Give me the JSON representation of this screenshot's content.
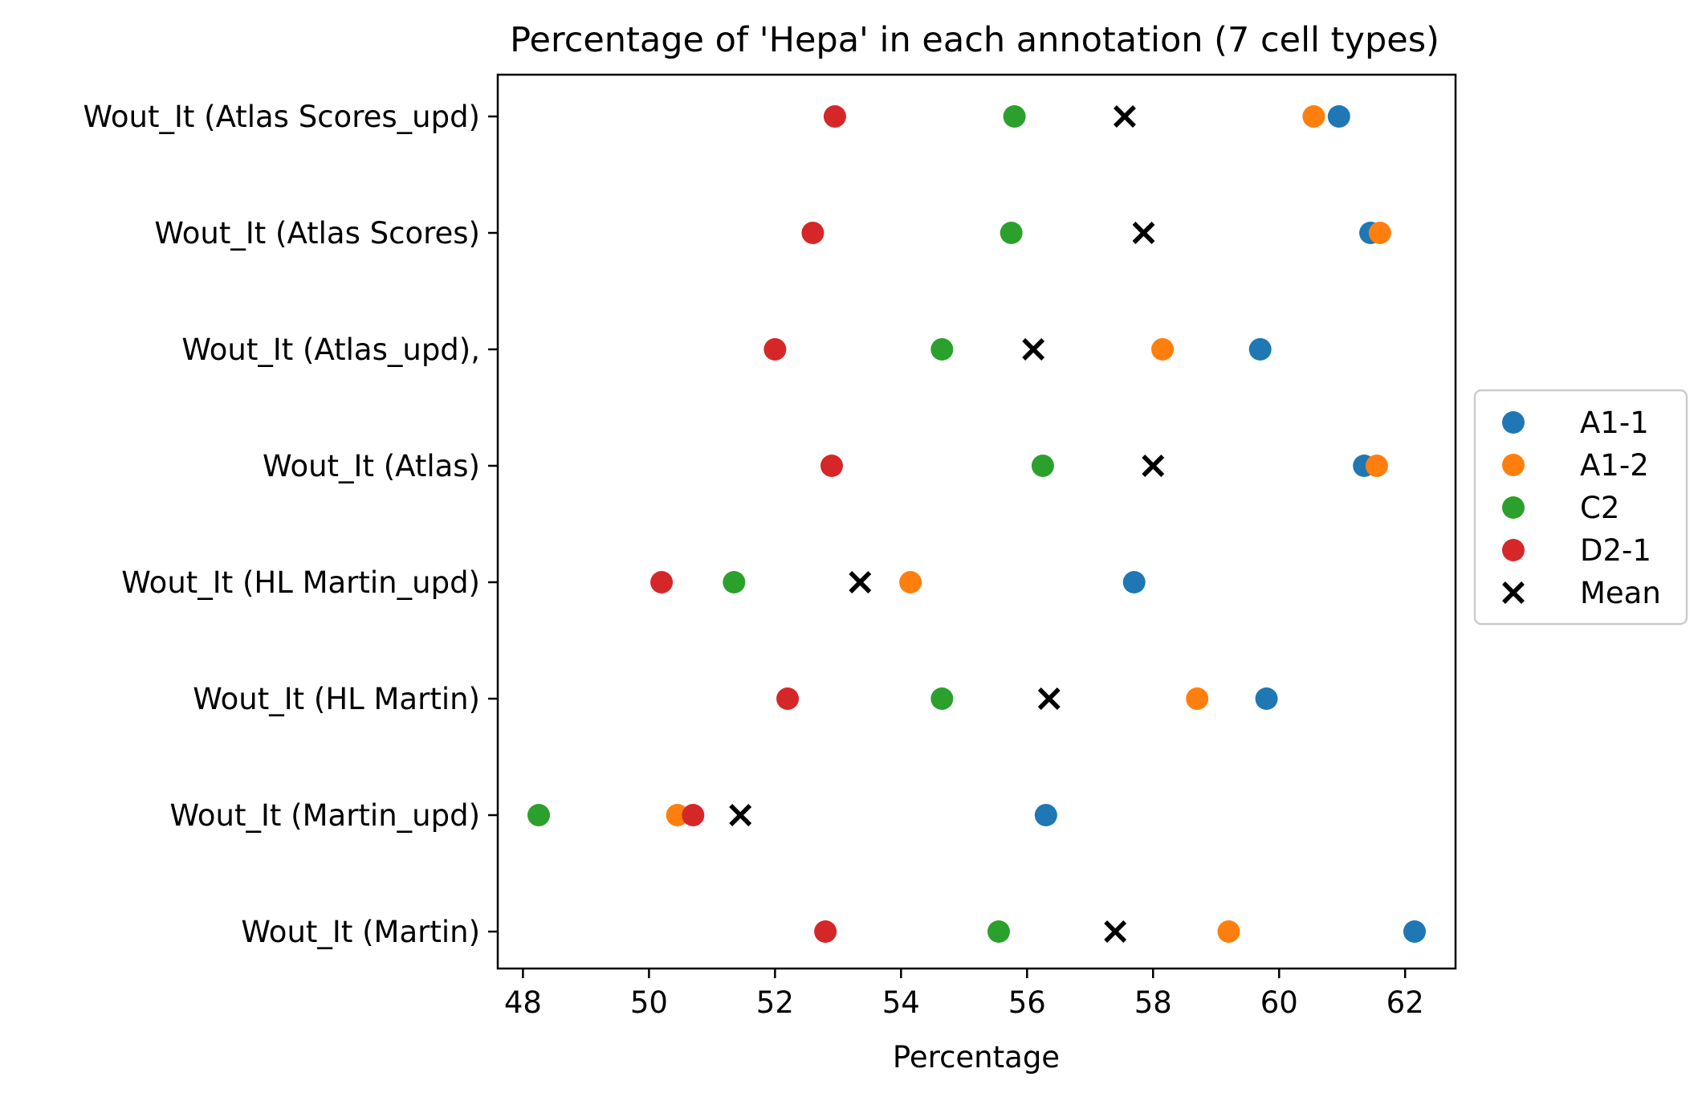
{
  "chart_data": {
    "type": "scatter",
    "title": "Percentage of 'Hepa' in each annotation (7 cell types)",
    "xlabel": "Percentage",
    "ylabel": "",
    "xlim": [
      47.6,
      62.8
    ],
    "xticks": [
      48,
      50,
      52,
      54,
      56,
      58,
      60,
      62
    ],
    "categories": [
      "Wout_It (Atlas Scores_upd)",
      "Wout_It (Atlas Scores)",
      "Wout_It (Atlas_upd),",
      "Wout_It (Atlas)",
      "Wout_It (HL Martin_upd)",
      "Wout_It (HL Martin)",
      "Wout_It (Martin_upd)",
      "Wout_It (Martin)"
    ],
    "series": [
      {
        "name": "A1-1",
        "color": "#1f77b4",
        "marker": "circle",
        "values": [
          60.95,
          61.45,
          59.7,
          61.35,
          57.7,
          59.8,
          56.3,
          62.15
        ]
      },
      {
        "name": "A1-2",
        "color": "#ff7f0e",
        "marker": "circle",
        "values": [
          60.55,
          61.6,
          58.15,
          61.55,
          54.15,
          58.7,
          50.45,
          59.2
        ]
      },
      {
        "name": "C2",
        "color": "#2ca02c",
        "marker": "circle",
        "values": [
          55.8,
          55.75,
          54.65,
          56.25,
          51.35,
          54.65,
          48.25,
          55.55
        ]
      },
      {
        "name": "D2-1",
        "color": "#d62728",
        "marker": "circle",
        "values": [
          52.95,
          52.6,
          52.0,
          52.9,
          50.2,
          52.2,
          50.7,
          52.8
        ]
      },
      {
        "name": "Mean",
        "color": "#000000",
        "marker": "x",
        "values": [
          57.55,
          57.85,
          56.1,
          58.0,
          53.35,
          56.35,
          51.45,
          57.4
        ]
      }
    ],
    "legend": "outside-right",
    "grid": false
  }
}
